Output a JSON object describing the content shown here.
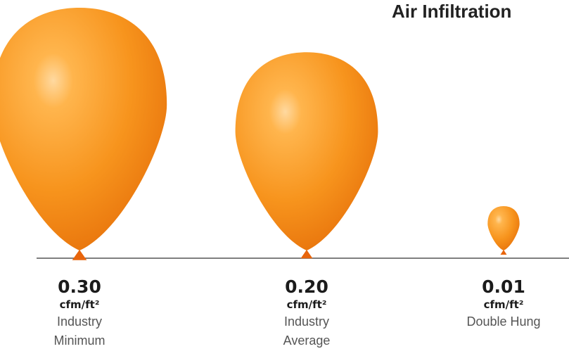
{
  "chart_data": {
    "type": "balloon",
    "title": "Air Infiltration",
    "categories": [
      "Industry Minimum",
      "Industry Average",
      "Double Hung"
    ],
    "values": [
      0.3,
      0.2,
      0.01
    ],
    "value_labels": [
      "0.30",
      "0.20",
      "0.01"
    ],
    "unit": "cfm/ft²",
    "color": "#f7941d"
  }
}
